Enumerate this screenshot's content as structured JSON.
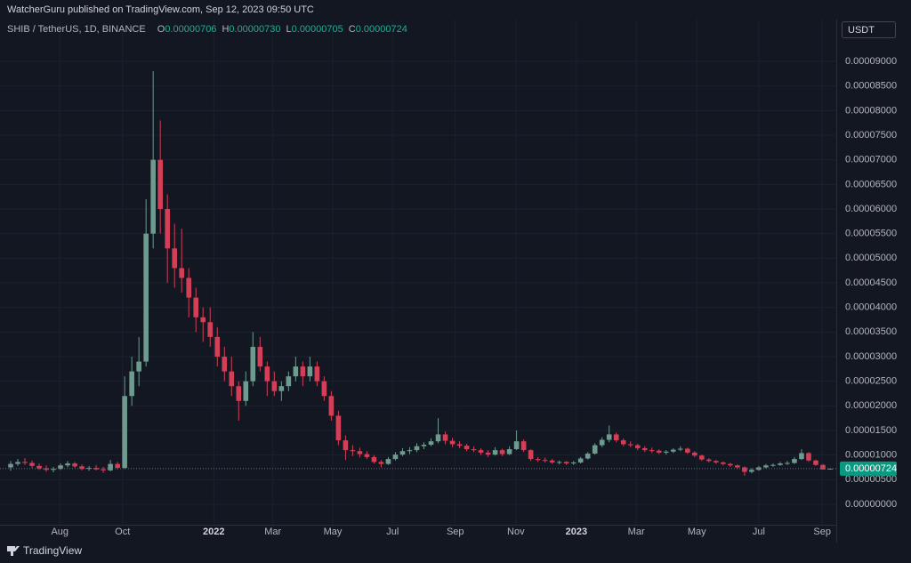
{
  "header": {
    "publisher": "WatcherGuru published on TradingView.com, Sep 12, 2023 09:50 UTC"
  },
  "footer": {
    "brand": "TradingView"
  },
  "chart_data": {
    "type": "candlestick",
    "symbol": "SHIB / TetherUS, 1D, BINANCE",
    "currency": "USDT",
    "legend": [
      {
        "key": "O",
        "value": 7.06e-06,
        "label": "0.00000706"
      },
      {
        "key": "H",
        "value": 7.3e-06,
        "label": "0.00000730"
      },
      {
        "key": "L",
        "value": 7.05e-06,
        "label": "0.00000705"
      },
      {
        "key": "C",
        "value": 7.24e-06,
        "label": "0.00000724"
      }
    ],
    "last_price": {
      "value": 7.24e-06,
      "label": "0.00000724"
    },
    "up_color": "#6f9a8f",
    "down_color": "#d23f58",
    "grid": true,
    "xlim": [
      0,
      116
    ],
    "xticks": [
      {
        "value": 7.4,
        "label": "Aug"
      },
      {
        "value": 16.2,
        "label": "Oct"
      },
      {
        "value": 29.0,
        "label": "2022"
      },
      {
        "value": 37.3,
        "label": "Mar"
      },
      {
        "value": 45.7,
        "label": "May"
      },
      {
        "value": 54.1,
        "label": "Jul"
      },
      {
        "value": 62.9,
        "label": "Sep"
      },
      {
        "value": 71.4,
        "label": "Nov"
      },
      {
        "value": 79.9,
        "label": "2023"
      },
      {
        "value": 88.3,
        "label": "Mar"
      },
      {
        "value": 96.8,
        "label": "May"
      },
      {
        "value": 105.5,
        "label": "Jul"
      },
      {
        "value": 114.4,
        "label": "Sep"
      }
    ],
    "ylim": [
      -4.16e-06,
      9.85e-05
    ],
    "yticks": [
      {
        "value": 0,
        "label": "0.00000000"
      },
      {
        "value": 5e-06,
        "label": "0.00000500"
      },
      {
        "value": 1e-05,
        "label": "0.00001000"
      },
      {
        "value": 1.5e-05,
        "label": "0.00001500"
      },
      {
        "value": 2e-05,
        "label": "0.00002000"
      },
      {
        "value": 2.5e-05,
        "label": "0.00002500"
      },
      {
        "value": 3e-05,
        "label": "0.00003000"
      },
      {
        "value": 3.5e-05,
        "label": "0.00003500"
      },
      {
        "value": 4e-05,
        "label": "0.00004000"
      },
      {
        "value": 4.5e-05,
        "label": "0.00004500"
      },
      {
        "value": 5e-05,
        "label": "0.00005000"
      },
      {
        "value": 5.5e-05,
        "label": "0.00005500"
      },
      {
        "value": 6e-05,
        "label": "0.00006000"
      },
      {
        "value": 6.5e-05,
        "label": "0.00006500"
      },
      {
        "value": 7e-05,
        "label": "0.00007000"
      },
      {
        "value": 7.5e-05,
        "label": "0.00007500"
      },
      {
        "value": 8e-05,
        "label": "0.00008000"
      },
      {
        "value": 8.5e-05,
        "label": "0.00008500"
      },
      {
        "value": 9e-05,
        "label": "0.00009000"
      }
    ],
    "open": [
      7.5e-06,
      8.2e-06,
      8.6e-06,
      8.4e-06,
      7.8e-06,
      7.3e-06,
      7e-06,
      7.2e-06,
      7.9e-06,
      8.3e-06,
      7.7e-06,
      7.2e-06,
      7.4e-06,
      7.1e-06,
      6.9e-06,
      8.2e-06,
      7.4e-06,
      2.2e-05,
      2.7e-05,
      2.9e-05,
      5.5e-05,
      7e-05,
      6e-05,
      5.2e-05,
      4.8e-05,
      4.6e-05,
      4.2e-05,
      3.8e-05,
      3.7e-05,
      3.4e-05,
      3e-05,
      2.7e-05,
      2.4e-05,
      2.1e-05,
      2.5e-05,
      3.2e-05,
      2.8e-05,
      2.5e-05,
      2.3e-05,
      2.4e-05,
      2.6e-05,
      2.8e-05,
      2.6e-05,
      2.8e-05,
      2.5e-05,
      2.2e-05,
      1.8e-05,
      1.3e-05,
      1.1e-05,
      1.08e-05,
      1.02e-05,
      9.6e-06,
      8.6e-06,
      8.2e-06,
      9.2e-06,
      1.01e-05,
      1.08e-05,
      1.1e-05,
      1.18e-05,
      1.21e-05,
      1.28e-05,
      1.42e-05,
      1.29e-05,
      1.22e-05,
      1.19e-05,
      1.12e-05,
      1.1e-05,
      1.05e-05,
      1.01e-05,
      1.1e-05,
      1.02e-05,
      1.12e-05,
      1.28e-05,
      1.1e-05,
      9.2e-06,
      9e-06,
      8.9e-06,
      8.5e-06,
      8.6e-06,
      8.3e-06,
      8.5e-06,
      9.3e-06,
      1.03e-05,
      1.2e-05,
      1.31e-05,
      1.42e-05,
      1.3e-05,
      1.22e-05,
      1.2e-05,
      1.14e-05,
      1.1e-05,
      1.09e-05,
      1.05e-05,
      1.07e-05,
      1.11e-05,
      1.13e-05,
      1.05e-05,
      9.9e-06,
      9.1e-06,
      8.8e-06,
      8.5e-06,
      8.2e-06,
      7.9e-06,
      7.5e-06,
      6.6e-06,
      7e-06,
      7.5e-06,
      7.9e-06,
      8e-06,
      8.3e-06,
      8.4e-06,
      9.2e-06,
      1.04e-05,
      8.9e-06,
      8e-06,
      7.06e-06
    ],
    "high": [
      8.8e-06,
      9.2e-06,
      9.4e-06,
      8.9e-06,
      8.3e-06,
      7.9e-06,
      7.6e-06,
      8.3e-06,
      8.8e-06,
      8.6e-06,
      8.1e-06,
      7.8e-06,
      8e-06,
      7.6e-06,
      9e-06,
      8.6e-06,
      2.6e-05,
      3e-05,
      3.4e-05,
      6.2e-05,
      8.8e-05,
      7.8e-05,
      6.3e-05,
      5.7e-05,
      5.6e-05,
      4.8e-05,
      4.4e-05,
      4e-05,
      4e-05,
      3.6e-05,
      3.2e-05,
      3e-05,
      2.5e-05,
      2.7e-05,
      3.5e-05,
      3.4e-05,
      2.9e-05,
      2.7e-05,
      2.5e-05,
      2.7e-05,
      3e-05,
      2.9e-05,
      3e-05,
      2.9e-05,
      2.6e-05,
      2.3e-05,
      1.9e-05,
      1.4e-05,
      1.2e-05,
      1.15e-05,
      1.08e-05,
      1e-05,
      9e-06,
      9.6e-06,
      1.06e-05,
      1.14e-05,
      1.16e-05,
      1.24e-05,
      1.26e-05,
      1.34e-05,
      1.75e-05,
      1.48e-05,
      1.35e-05,
      1.28e-05,
      1.23e-05,
      1.18e-05,
      1.14e-05,
      1.1e-05,
      1.16e-05,
      1.13e-05,
      1.18e-05,
      1.5e-05,
      1.32e-05,
      1.12e-05,
      9.6e-06,
      9.5e-06,
      9.2e-06,
      8.9e-06,
      8.8e-06,
      8.8e-06,
      9.6e-06,
      1.06e-05,
      1.24e-05,
      1.36e-05,
      1.6e-05,
      1.46e-05,
      1.34e-05,
      1.28e-05,
      1.23e-05,
      1.18e-05,
      1.15e-05,
      1.12e-05,
      1.1e-05,
      1.14e-05,
      1.18e-05,
      1.15e-05,
      1.08e-05,
      1.01e-05,
      9.4e-06,
      9e-06,
      8.7e-06,
      8.4e-06,
      8.1e-06,
      7.7e-06,
      7.3e-06,
      7.8e-06,
      8.2e-06,
      8.3e-06,
      8.6e-06,
      8.8e-06,
      9.6e-06,
      1.12e-05,
      1.06e-05,
      9.1e-06,
      8.2e-06,
      7.3e-06
    ],
    "low": [
      6.8e-06,
      7.8e-06,
      8e-06,
      7.4e-06,
      7e-06,
      6.6e-06,
      6.5e-06,
      7e-06,
      7.5e-06,
      7.4e-06,
      6.9e-06,
      6.8e-06,
      6.9e-06,
      6.4e-06,
      6.7e-06,
      7.1e-06,
      7.2e-06,
      2e-05,
      2.4e-05,
      2.8e-05,
      5.2e-05,
      5.5e-05,
      4.5e-05,
      4.4e-05,
      4.3e-05,
      3.8e-05,
      3.5e-05,
      3.3e-05,
      3.2e-05,
      2.8e-05,
      2.5e-05,
      2.2e-05,
      1.7e-05,
      2e-05,
      2.4e-05,
      2.7e-05,
      2.2e-05,
      2.2e-05,
      2.1e-05,
      2.3e-05,
      2.5e-05,
      2.4e-05,
      2.5e-05,
      2.4e-05,
      2.1e-05,
      1.7e-05,
      1.2e-05,
      9e-06,
      9.8e-06,
      9.5e-06,
      9.2e-06,
      8.3e-06,
      7.5e-06,
      8e-06,
      8.9e-06,
      9.8e-06,
      1.02e-05,
      1.06e-05,
      1.12e-05,
      1.18e-05,
      1.24e-05,
      1.22e-05,
      1.16e-05,
      1.14e-05,
      1.08e-05,
      1.06e-05,
      1e-05,
      9.6e-06,
      9.9e-06,
      9.8e-06,
      1e-05,
      1.1e-05,
      1.06e-05,
      8.8e-06,
      8.6e-06,
      8.5e-06,
      8.2e-06,
      8.1e-06,
      8e-06,
      8e-06,
      8.3e-06,
      9.1e-06,
      1.01e-05,
      1.16e-05,
      1.26e-05,
      1.26e-05,
      1.18e-05,
      1.16e-05,
      1.1e-05,
      1.06e-05,
      1.04e-05,
      1.02e-05,
      1.01e-05,
      1.04e-05,
      1.08e-05,
      1.02e-05,
      9.6e-06,
      8.8e-06,
      8.5e-06,
      8.2e-06,
      7.9e-06,
      7.6e-06,
      7.2e-06,
      5.8e-06,
      6.3e-06,
      6.8e-06,
      7.3e-06,
      7.6e-06,
      7.8e-06,
      8e-06,
      8.2e-06,
      9e-06,
      8.6e-06,
      7.8e-06,
      7.3e-06,
      7.05e-06
    ],
    "close": [
      8.2e-06,
      8.6e-06,
      8.4e-06,
      7.8e-06,
      7.3e-06,
      7e-06,
      7.2e-06,
      7.9e-06,
      8.3e-06,
      7.7e-06,
      7.2e-06,
      7.4e-06,
      7.1e-06,
      6.9e-06,
      8.2e-06,
      7.4e-06,
      2.2e-05,
      2.7e-05,
      2.9e-05,
      5.5e-05,
      7e-05,
      6e-05,
      5.2e-05,
      4.8e-05,
      4.6e-05,
      4.2e-05,
      3.8e-05,
      3.7e-05,
      3.4e-05,
      3e-05,
      2.7e-05,
      2.4e-05,
      2.1e-05,
      2.5e-05,
      3.2e-05,
      2.8e-05,
      2.5e-05,
      2.3e-05,
      2.4e-05,
      2.6e-05,
      2.8e-05,
      2.6e-05,
      2.8e-05,
      2.5e-05,
      2.2e-05,
      1.8e-05,
      1.3e-05,
      1.1e-05,
      1.08e-05,
      1.02e-05,
      9.6e-06,
      8.6e-06,
      8.2e-06,
      9.2e-06,
      1.01e-05,
      1.08e-05,
      1.1e-05,
      1.18e-05,
      1.21e-05,
      1.28e-05,
      1.42e-05,
      1.29e-05,
      1.22e-05,
      1.19e-05,
      1.12e-05,
      1.1e-05,
      1.05e-05,
      1.01e-05,
      1.1e-05,
      1.02e-05,
      1.12e-05,
      1.28e-05,
      1.1e-05,
      9.2e-06,
      9e-06,
      8.9e-06,
      8.5e-06,
      8.6e-06,
      8.3e-06,
      8.5e-06,
      9.3e-06,
      1.03e-05,
      1.2e-05,
      1.31e-05,
      1.42e-05,
      1.3e-05,
      1.22e-05,
      1.2e-05,
      1.14e-05,
      1.1e-05,
      1.09e-05,
      1.05e-05,
      1.07e-05,
      1.11e-05,
      1.13e-05,
      1.05e-05,
      9.9e-06,
      9.1e-06,
      8.8e-06,
      8.5e-06,
      8.2e-06,
      7.9e-06,
      7.5e-06,
      6.6e-06,
      7e-06,
      7.5e-06,
      7.9e-06,
      8e-06,
      8.3e-06,
      8.4e-06,
      9.2e-06,
      1.04e-05,
      8.9e-06,
      8e-06,
      7.06e-06,
      7.24e-06
    ]
  }
}
